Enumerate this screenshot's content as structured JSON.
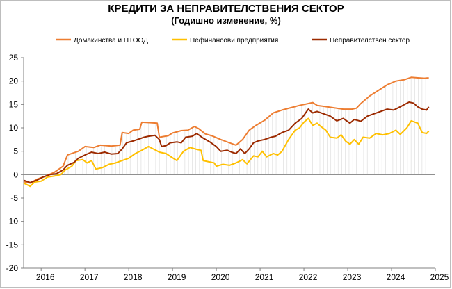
{
  "chart_data": {
    "type": "line",
    "title": "КРЕДИТИ ЗА НЕПРАВИТЕЛСТВЕНИЯ  СЕКТОР",
    "subtitle": "(Годишно  изменение, %)",
    "ylim": [
      -20,
      25
    ],
    "yticks": [
      "25",
      "20",
      "15",
      "10",
      "5",
      "0",
      "-5",
      "-10",
      "-15",
      "-20"
    ],
    "xlim": [
      2015.6,
      2025.0
    ],
    "xticks": [
      "2016",
      "2017",
      "2018",
      "2019",
      "2020",
      "2021",
      "2022",
      "2023",
      "2024",
      "2025"
    ],
    "grid": false,
    "legend_position": "top",
    "series": [
      {
        "name": "Домакинства и НТООД",
        "color": "#ED7D31",
        "points": [
          [
            2015.6,
            -1.5
          ],
          [
            2015.75,
            -1.8
          ],
          [
            2015.9,
            -1.0
          ],
          [
            2016.1,
            -0.3
          ],
          [
            2016.3,
            0.5
          ],
          [
            2016.5,
            1.8
          ],
          [
            2016.6,
            4.2
          ],
          [
            2016.85,
            5.0
          ],
          [
            2017.0,
            6.0
          ],
          [
            2017.2,
            5.8
          ],
          [
            2017.35,
            6.3
          ],
          [
            2017.6,
            6.1
          ],
          [
            2017.8,
            6.3
          ],
          [
            2017.85,
            9.0
          ],
          [
            2018.0,
            8.8
          ],
          [
            2018.1,
            9.5
          ],
          [
            2018.25,
            9.7
          ],
          [
            2018.3,
            11.2
          ],
          [
            2018.5,
            11.1
          ],
          [
            2018.65,
            11.0
          ],
          [
            2018.7,
            8.0
          ],
          [
            2018.9,
            8.3
          ],
          [
            2019.0,
            8.9
          ],
          [
            2019.2,
            9.4
          ],
          [
            2019.35,
            9.5
          ],
          [
            2019.5,
            10.3
          ],
          [
            2019.6,
            9.8
          ],
          [
            2019.75,
            8.7
          ],
          [
            2019.9,
            8.3
          ],
          [
            2020.1,
            7.5
          ],
          [
            2020.3,
            6.8
          ],
          [
            2020.45,
            6.3
          ],
          [
            2020.6,
            7.5
          ],
          [
            2020.75,
            9.5
          ],
          [
            2020.9,
            10.5
          ],
          [
            2021.1,
            11.6
          ],
          [
            2021.3,
            13.2
          ],
          [
            2021.5,
            13.8
          ],
          [
            2021.7,
            14.3
          ],
          [
            2021.9,
            14.8
          ],
          [
            2022.1,
            15.2
          ],
          [
            2022.2,
            15.4
          ],
          [
            2022.3,
            14.8
          ],
          [
            2022.45,
            14.6
          ],
          [
            2022.6,
            14.4
          ],
          [
            2022.75,
            14.2
          ],
          [
            2022.9,
            14.0
          ],
          [
            2023.1,
            14.0
          ],
          [
            2023.2,
            14.2
          ],
          [
            2023.3,
            15.2
          ],
          [
            2023.5,
            16.8
          ],
          [
            2023.7,
            18.0
          ],
          [
            2023.9,
            19.2
          ],
          [
            2024.1,
            20.0
          ],
          [
            2024.3,
            20.3
          ],
          [
            2024.45,
            20.8
          ],
          [
            2024.6,
            20.7
          ],
          [
            2024.75,
            20.6
          ],
          [
            2024.85,
            20.7
          ]
        ]
      },
      {
        "name": "Нефинансови предприятия",
        "color": "#FFC000",
        "points": [
          [
            2015.6,
            -1.8
          ],
          [
            2015.75,
            -2.5
          ],
          [
            2015.85,
            -1.6
          ],
          [
            2016.0,
            -1.4
          ],
          [
            2016.15,
            -0.5
          ],
          [
            2016.3,
            -0.3
          ],
          [
            2016.45,
            0.0
          ],
          [
            2016.55,
            1.0
          ],
          [
            2016.7,
            1.8
          ],
          [
            2016.8,
            3.0
          ],
          [
            2016.95,
            3.2
          ],
          [
            2017.05,
            2.5
          ],
          [
            2017.15,
            3.0
          ],
          [
            2017.25,
            1.2
          ],
          [
            2017.4,
            1.5
          ],
          [
            2017.55,
            2.2
          ],
          [
            2017.7,
            2.5
          ],
          [
            2017.85,
            3.0
          ],
          [
            2018.0,
            3.5
          ],
          [
            2018.15,
            4.5
          ],
          [
            2018.3,
            5.2
          ],
          [
            2018.45,
            6.0
          ],
          [
            2018.6,
            5.3
          ],
          [
            2018.7,
            4.8
          ],
          [
            2018.85,
            4.5
          ],
          [
            2019.0,
            3.6
          ],
          [
            2019.1,
            3.0
          ],
          [
            2019.25,
            5.0
          ],
          [
            2019.4,
            5.8
          ],
          [
            2019.55,
            5.4
          ],
          [
            2019.65,
            5.2
          ],
          [
            2019.7,
            3.0
          ],
          [
            2019.8,
            2.8
          ],
          [
            2019.95,
            2.5
          ],
          [
            2020.0,
            1.8
          ],
          [
            2020.15,
            2.2
          ],
          [
            2020.3,
            2.0
          ],
          [
            2020.45,
            2.5
          ],
          [
            2020.6,
            3.2
          ],
          [
            2020.7,
            2.3
          ],
          [
            2020.85,
            4.0
          ],
          [
            2020.95,
            3.8
          ],
          [
            2021.05,
            5.0
          ],
          [
            2021.15,
            3.8
          ],
          [
            2021.3,
            4.5
          ],
          [
            2021.4,
            4.2
          ],
          [
            2021.5,
            5.0
          ],
          [
            2021.65,
            7.5
          ],
          [
            2021.8,
            9.5
          ],
          [
            2021.9,
            10.0
          ],
          [
            2022.0,
            11.2
          ],
          [
            2022.1,
            12.0
          ],
          [
            2022.2,
            10.5
          ],
          [
            2022.3,
            11.0
          ],
          [
            2022.4,
            10.2
          ],
          [
            2022.5,
            9.5
          ],
          [
            2022.6,
            8.0
          ],
          [
            2022.75,
            7.8
          ],
          [
            2022.85,
            8.5
          ],
          [
            2022.95,
            7.2
          ],
          [
            2023.05,
            6.5
          ],
          [
            2023.15,
            7.5
          ],
          [
            2023.25,
            6.5
          ],
          [
            2023.35,
            8.0
          ],
          [
            2023.5,
            7.8
          ],
          [
            2023.65,
            8.8
          ],
          [
            2023.8,
            8.5
          ],
          [
            2023.95,
            8.8
          ],
          [
            2024.1,
            9.5
          ],
          [
            2024.2,
            8.6
          ],
          [
            2024.35,
            10.0
          ],
          [
            2024.45,
            11.5
          ],
          [
            2024.6,
            11.0
          ],
          [
            2024.7,
            9.0
          ],
          [
            2024.8,
            8.8
          ],
          [
            2024.85,
            9.3
          ]
        ]
      },
      {
        "name": "Неправителствен сектор",
        "color": "#9C2A00",
        "points": [
          [
            2015.6,
            -1.2
          ],
          [
            2015.75,
            -1.7
          ],
          [
            2015.9,
            -1.2
          ],
          [
            2016.05,
            -0.5
          ],
          [
            2016.2,
            0.0
          ],
          [
            2016.35,
            0.2
          ],
          [
            2016.5,
            1.0
          ],
          [
            2016.6,
            2.0
          ],
          [
            2016.75,
            2.6
          ],
          [
            2016.85,
            3.5
          ],
          [
            2017.0,
            4.2
          ],
          [
            2017.15,
            4.8
          ],
          [
            2017.3,
            4.5
          ],
          [
            2017.45,
            4.8
          ],
          [
            2017.6,
            4.4
          ],
          [
            2017.75,
            4.5
          ],
          [
            2017.85,
            5.5
          ],
          [
            2017.95,
            6.8
          ],
          [
            2018.1,
            7.2
          ],
          [
            2018.2,
            7.5
          ],
          [
            2018.35,
            8.0
          ],
          [
            2018.45,
            8.2
          ],
          [
            2018.6,
            8.4
          ],
          [
            2018.7,
            7.5
          ],
          [
            2018.75,
            6.0
          ],
          [
            2018.85,
            6.2
          ],
          [
            2018.95,
            6.8
          ],
          [
            2019.1,
            7.0
          ],
          [
            2019.2,
            6.8
          ],
          [
            2019.3,
            8.0
          ],
          [
            2019.45,
            8.2
          ],
          [
            2019.55,
            8.8
          ],
          [
            2019.7,
            7.8
          ],
          [
            2019.85,
            7.0
          ],
          [
            2020.0,
            6.0
          ],
          [
            2020.1,
            5.0
          ],
          [
            2020.25,
            5.2
          ],
          [
            2020.35,
            4.8
          ],
          [
            2020.45,
            4.5
          ],
          [
            2020.55,
            5.5
          ],
          [
            2020.65,
            4.5
          ],
          [
            2020.75,
            5.5
          ],
          [
            2020.85,
            6.8
          ],
          [
            2020.95,
            7.2
          ],
          [
            2021.1,
            7.5
          ],
          [
            2021.25,
            8.0
          ],
          [
            2021.35,
            8.2
          ],
          [
            2021.5,
            9.0
          ],
          [
            2021.65,
            9.5
          ],
          [
            2021.8,
            11.0
          ],
          [
            2021.95,
            12.0
          ],
          [
            2022.1,
            14.0
          ],
          [
            2022.2,
            13.2
          ],
          [
            2022.3,
            13.5
          ],
          [
            2022.45,
            13.0
          ],
          [
            2022.6,
            12.5
          ],
          [
            2022.75,
            11.5
          ],
          [
            2022.9,
            12.0
          ],
          [
            2023.05,
            11.0
          ],
          [
            2023.15,
            11.8
          ],
          [
            2023.3,
            11.4
          ],
          [
            2023.45,
            12.5
          ],
          [
            2023.6,
            13.0
          ],
          [
            2023.75,
            13.5
          ],
          [
            2023.9,
            14.0
          ],
          [
            2024.05,
            13.8
          ],
          [
            2024.2,
            14.5
          ],
          [
            2024.3,
            15.0
          ],
          [
            2024.4,
            15.5
          ],
          [
            2024.5,
            15.3
          ],
          [
            2024.6,
            14.5
          ],
          [
            2024.7,
            14.0
          ],
          [
            2024.8,
            13.8
          ],
          [
            2024.85,
            14.5
          ]
        ]
      }
    ]
  }
}
